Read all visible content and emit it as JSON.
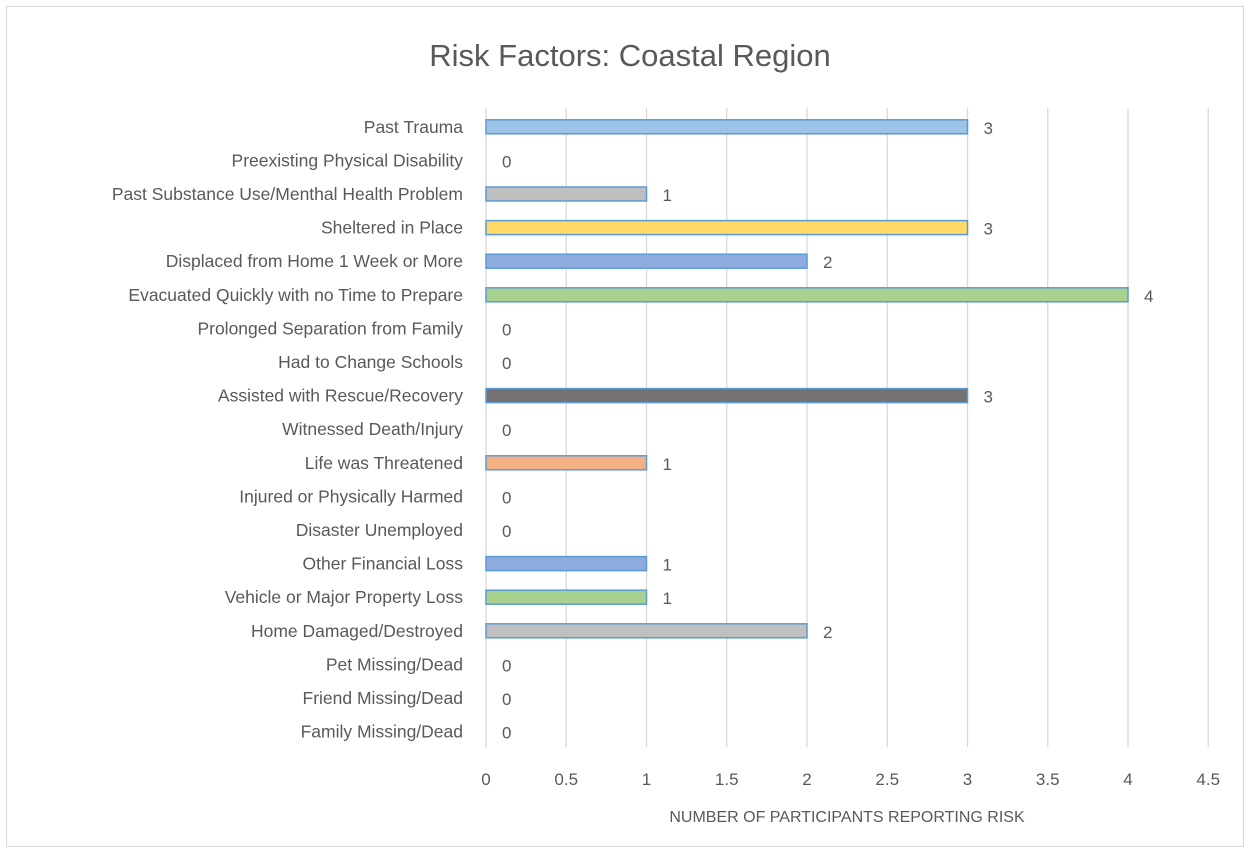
{
  "chart_data": {
    "type": "bar",
    "orientation": "horizontal",
    "title": "Risk Factors: Coastal Region",
    "xlabel": "NUMBER OF PARTICIPANTS REPORTING RISK",
    "ylabel": "",
    "xlim": [
      0,
      4.5
    ],
    "xticks": [
      "0",
      "0.5",
      "1",
      "1.5",
      "2",
      "2.5",
      "3",
      "3.5",
      "4",
      "4.5"
    ],
    "grid": "vertical",
    "legend": "none",
    "categories": [
      "Past Trauma",
      "Preexisting Physical Disability",
      "Past Substance Use/Menthal Health Problem",
      "Sheltered in Place",
      "Displaced from Home 1 Week or More",
      "Evacuated Quickly with no Time to Prepare",
      "Prolonged Separation from Family",
      "Had to Change Schools",
      "Assisted with Rescue/Recovery",
      "Witnessed Death/Injury",
      "Life was Threatened",
      "Injured or Physically Harmed",
      "Disaster Unemployed",
      "Other Financial Loss",
      "Vehicle or Major Property Loss",
      "Home Damaged/Destroyed",
      "Pet Missing/Dead",
      "Friend Missing/Dead",
      "Family Missing/Dead"
    ],
    "values": [
      3,
      0,
      1,
      3,
      2,
      4,
      0,
      0,
      3,
      0,
      1,
      0,
      0,
      1,
      1,
      2,
      0,
      0,
      0
    ],
    "data_labels": [
      "3",
      "0",
      "1",
      "3",
      "2",
      "4",
      "0",
      "0",
      "3",
      "0",
      "1",
      "0",
      "0",
      "1",
      "1",
      "2",
      "0",
      "0",
      "0"
    ],
    "bar_colors": [
      "#9dc3e6",
      "#9dc3e6",
      "#bfbfbf",
      "#ffd966",
      "#8faadc",
      "#a9d18e",
      "#a9d18e",
      "#a9d18e",
      "#767171",
      "#f4b183",
      "#f4b183",
      "#8faadc",
      "#8faadc",
      "#8faadc",
      "#a9d18e",
      "#bfbfbf",
      "#bfbfbf",
      "#bfbfbf",
      "#bfbfbf"
    ],
    "bar_border_color": "#5b9bd5"
  }
}
